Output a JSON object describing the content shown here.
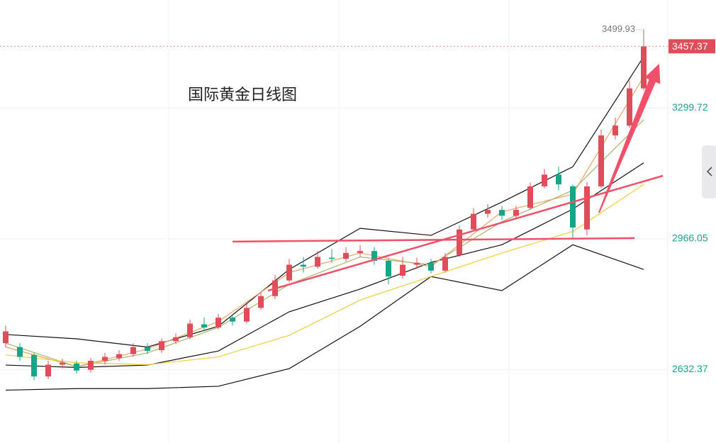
{
  "chart_data": {
    "type": "candlestick",
    "title": "国际黄金日线图",
    "xlim": [
      -0.4,
      46.7
    ],
    "ylim": [
      2445.2,
      3575.5
    ],
    "yticks": [
      2632.37,
      2966.05,
      3299.72
    ],
    "xgrid": [
      11.5,
      23.5,
      35.5
    ],
    "grid": true,
    "up_color": "#e04c5a",
    "down_color": "#17a58a",
    "candles": [
      [
        2700,
        2730,
        2745,
        2690
      ],
      [
        2690,
        2665,
        2700,
        2655
      ],
      [
        2670,
        2615,
        2675,
        2605
      ],
      [
        2615,
        2645,
        2655,
        2608
      ],
      [
        2645,
        2650,
        2660,
        2635
      ],
      [
        2648,
        2630,
        2655,
        2622
      ],
      [
        2632,
        2655,
        2662,
        2625
      ],
      [
        2655,
        2665,
        2675,
        2645
      ],
      [
        2662,
        2672,
        2682,
        2655
      ],
      [
        2672,
        2690,
        2700,
        2665
      ],
      [
        2690,
        2680,
        2700,
        2672
      ],
      [
        2682,
        2705,
        2712,
        2675
      ],
      [
        2705,
        2715,
        2725,
        2698
      ],
      [
        2715,
        2750,
        2760,
        2710
      ],
      [
        2748,
        2740,
        2765,
        2730
      ],
      [
        2740,
        2765,
        2775,
        2735
      ],
      [
        2765,
        2755,
        2775,
        2745
      ],
      [
        2755,
        2790,
        2800,
        2750
      ],
      [
        2790,
        2820,
        2830,
        2785
      ],
      [
        2820,
        2860,
        2875,
        2812
      ],
      [
        2860,
        2900,
        2915,
        2855
      ],
      [
        2900,
        2895,
        2920,
        2880
      ],
      [
        2895,
        2920,
        2935,
        2890
      ],
      [
        2918,
        2915,
        2940,
        2905
      ],
      [
        2915,
        2930,
        2945,
        2908
      ],
      [
        2930,
        2935,
        2950,
        2920
      ],
      [
        2935,
        2910,
        2945,
        2900
      ],
      [
        2910,
        2870,
        2915,
        2850
      ],
      [
        2872,
        2900,
        2920,
        2865
      ],
      [
        2900,
        2905,
        2918,
        2890
      ],
      [
        2905,
        2885,
        2915,
        2878
      ],
      [
        2885,
        2920,
        2930,
        2880
      ],
      [
        2925,
        2990,
        3000,
        2920
      ],
      [
        2990,
        3030,
        3045,
        2985
      ],
      [
        3030,
        3040,
        3055,
        3020
      ],
      [
        3040,
        3025,
        3050,
        3015
      ],
      [
        3025,
        3040,
        3050,
        3020
      ],
      [
        3045,
        3100,
        3110,
        3040
      ],
      [
        3100,
        3130,
        3145,
        3095
      ],
      [
        3130,
        3105,
        3150,
        3090
      ],
      [
        3100,
        2995,
        3105,
        2965
      ],
      [
        2990,
        3100,
        3110,
        2975
      ],
      [
        3100,
        3230,
        3245,
        3095
      ],
      [
        3230,
        3255,
        3275,
        3220
      ],
      [
        3255,
        3350,
        3370,
        3250
      ],
      [
        3350,
        3457,
        3500,
        3345
      ]
    ],
    "line_x": [
      0,
      5,
      10,
      15,
      20,
      25,
      30,
      35,
      40,
      45
    ],
    "lines": [
      {
        "color": "#111111",
        "values": [
          2722,
          2711,
          2690,
          2743,
          2888,
          2993,
          2975,
          3060,
          3150,
          3431
        ]
      },
      {
        "color": "#111111",
        "values": [
          2644,
          2638,
          2644,
          2680,
          2780,
          2838,
          2906,
          2951,
          3042,
          3160
        ]
      },
      {
        "color": "#111111",
        "values": [
          2580,
          2584,
          2584,
          2590,
          2635,
          2743,
          2870,
          2834,
          2951,
          2888
        ]
      },
      {
        "color": "#f0a060",
        "values": [
          2690,
          2640,
          2685,
          2755,
          2880,
          2930,
          2895,
          3035,
          3080,
          3380
        ]
      },
      {
        "color": "#a8b46a",
        "values": [
          2700,
          2640,
          2675,
          2740,
          2850,
          2920,
          2900,
          3010,
          3090,
          3270
        ]
      },
      {
        "color": "#f2cc3a",
        "values": [
          2670,
          2650,
          2645,
          2665,
          2720,
          2810,
          2870,
          2930,
          2985,
          3105
        ]
      }
    ],
    "trendlines": [
      {
        "x": [
          16,
          44.35
        ],
        "y": [
          2959,
          2968
        ]
      },
      {
        "x": [
          18.5,
          46.35
        ],
        "y": [
          2834,
          3127
        ]
      }
    ],
    "arrow": {
      "x": [
        41.85,
        46.1
      ],
      "y": [
        3033,
        3413
      ]
    },
    "trend_color": "#f0506a",
    "last_price": 3457.37,
    "high_price": 3499.93
  }
}
